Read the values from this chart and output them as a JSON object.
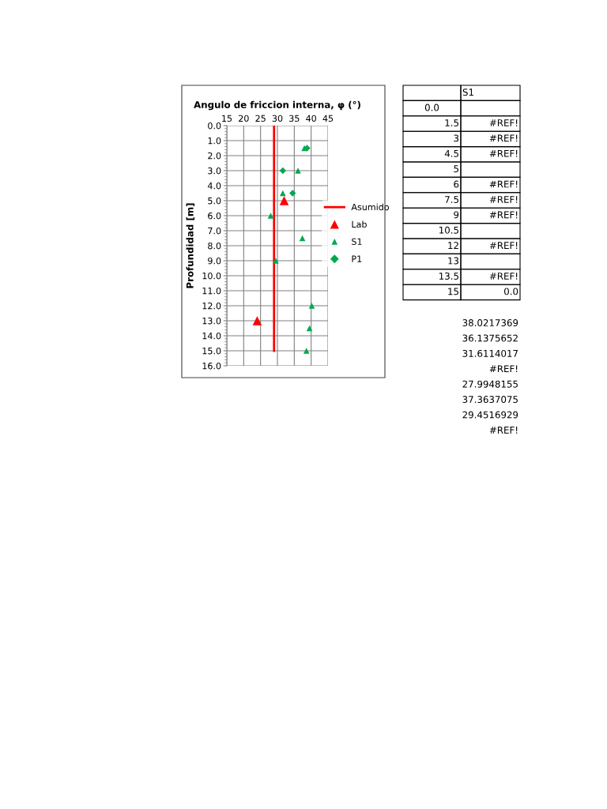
{
  "chart_data": [
    {
      "type": "scatter",
      "title": "Angulo de friccion interna, φ (°)",
      "ylabel": "Profundidad [m]",
      "xlim": [
        15,
        45
      ],
      "xticks": [
        15,
        20,
        25,
        30,
        35,
        40,
        45
      ],
      "ylim": [
        16,
        0
      ],
      "yticks": [
        {
          "value": 0,
          "label": "0.0"
        },
        {
          "value": 1,
          "label": "1.0"
        },
        {
          "value": 2,
          "label": "2.0"
        },
        {
          "value": 3,
          "label": "3.0"
        },
        {
          "value": 4,
          "label": "4.0"
        },
        {
          "value": 5,
          "label": "5.0"
        },
        {
          "value": 6,
          "label": "6.0"
        },
        {
          "value": 7,
          "label": "7.0"
        },
        {
          "value": 8,
          "label": "8.0"
        },
        {
          "value": 9,
          "label": "9.0"
        },
        {
          "value": 10,
          "label": "10.0"
        },
        {
          "value": 11,
          "label": "11.0"
        },
        {
          "value": 12,
          "label": "12.0"
        },
        {
          "value": 13,
          "label": "13.0"
        },
        {
          "value": 14,
          "label": "14.0"
        },
        {
          "value": 15,
          "label": "15.0"
        },
        {
          "value": 16,
          "label": "16.0"
        }
      ],
      "grid": true,
      "legend": "right",
      "series": [
        {
          "name": "Asumido",
          "type": "line",
          "color": "#ff0000",
          "marker": "none",
          "line_style": "solid",
          "x": [
            29,
            29
          ],
          "values": [
            0,
            15
          ]
        },
        {
          "name": "Lab",
          "type": "scatter",
          "color": "#ff0000",
          "marker": "triangle",
          "x": [
            32,
            24
          ],
          "values": [
            5,
            13
          ]
        },
        {
          "name": "S1",
          "type": "scatter",
          "color": "#00a84f",
          "marker": "triangle",
          "x": [
            38.0,
            36.1,
            31.6,
            28.0,
            37.4,
            29.5,
            40.2,
            39.5,
            38.6
          ],
          "values": [
            1.5,
            3,
            4.5,
            6,
            7.5,
            9,
            12,
            13.5,
            15
          ]
        },
        {
          "name": "P1",
          "type": "scatter",
          "color": "#00a84f",
          "marker": "diamond",
          "x": [
            38.8,
            31.6,
            34.5
          ],
          "values": [
            1.5,
            3,
            4.5
          ]
        }
      ]
    },
    {
      "type": "other",
      "cell_labels": [
        [
          null,
          "S1"
        ],
        [
          "0.0",
          null
        ],
        [
          "1.5",
          "#REF!"
        ],
        [
          "3",
          "#REF!"
        ],
        [
          "4.5",
          "#REF!"
        ],
        [
          "5",
          null
        ],
        [
          "6",
          "#REF!"
        ],
        [
          "7.5",
          "#REF!"
        ],
        [
          "9",
          "#REF!"
        ],
        [
          "10.5",
          null
        ],
        [
          "12",
          "#REF!"
        ],
        [
          "13",
          null
        ],
        [
          "13.5",
          "#REF!"
        ],
        [
          "15",
          "0.0"
        ]
      ],
      "annotations": [
        "38.0217369",
        "36.1375652",
        "31.6114017",
        "#REF!",
        "27.9948155",
        "37.3637075",
        "29.4516929",
        "#REF!"
      ]
    }
  ]
}
